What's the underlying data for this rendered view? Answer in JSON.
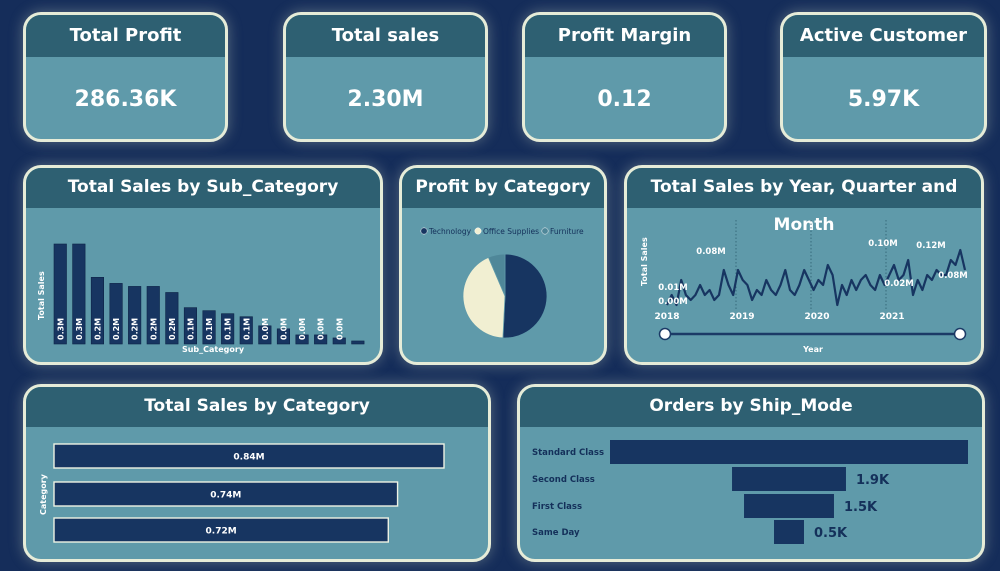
{
  "kpis": [
    {
      "title": "Total Profit",
      "value": "286.36K"
    },
    {
      "title": "Total sales",
      "value": "2.30M"
    },
    {
      "title": "Profit Margin",
      "value": "0.12"
    },
    {
      "title": "Active Customer",
      "value": "5.97K"
    }
  ],
  "panels": {
    "sub_category": {
      "title": "Total Sales by Sub_Category"
    },
    "profit_category": {
      "title": "Profit by Category"
    },
    "year_quarter": {
      "title": "Total Sales by Year, Quarter and Month"
    },
    "sales_category": {
      "title": "Total Sales by Category"
    },
    "ship_mode": {
      "title": "Orders by Ship_Mode"
    }
  },
  "colors": {
    "bar": "#173561",
    "card": "#5f9aaa",
    "header": "#2e6072",
    "border": "#e6ecd8",
    "pie_office": "#f1efd2",
    "pie_furniture": "#4f8799"
  },
  "chart_data": [
    {
      "id": "sub_category",
      "type": "bar",
      "title": "Total Sales by Sub_Category",
      "xlabel": "Sub_Category",
      "ylabel": "Total Sales",
      "values": [
        0.33,
        0.33,
        0.22,
        0.2,
        0.19,
        0.19,
        0.17,
        0.12,
        0.11,
        0.1,
        0.09,
        0.06,
        0.05,
        0.03,
        0.03,
        0.02,
        0.01
      ],
      "data_labels": [
        "0.3M",
        "0.3M",
        "0.2M",
        "0.2M",
        "0.2M",
        "0.2M",
        "0.2M",
        "0.1M",
        "0.1M",
        "0.1M",
        "0.1M",
        "0.0M",
        "0.0M",
        "0.0M",
        "0.0M",
        "0.0M",
        ""
      ]
    },
    {
      "id": "profit_category",
      "type": "pie",
      "title": "Profit by Category",
      "legend": [
        "Technology",
        "Office Supplies",
        "Furniture"
      ],
      "values": [
        145.45,
        122.49,
        18.45
      ]
    },
    {
      "id": "year_quarter",
      "type": "line",
      "title": "Total Sales by Year, Quarter and Month",
      "xlabel": "Year",
      "ylabel": "Total Sales",
      "x_ticks": [
        "2018",
        "2019",
        "2020",
        "2021"
      ],
      "values": [
        0.01,
        0.03,
        0.01,
        0.06,
        0.03,
        0.02,
        0.03,
        0.05,
        0.03,
        0.04,
        0.02,
        0.03,
        0.08,
        0.05,
        0.03,
        0.08,
        0.06,
        0.05,
        0.02,
        0.04,
        0.03,
        0.06,
        0.04,
        0.03,
        0.05,
        0.08,
        0.04,
        0.03,
        0.05,
        0.08,
        0.06,
        0.04,
        0.06,
        0.05,
        0.09,
        0.07,
        0.01,
        0.05,
        0.03,
        0.06,
        0.04,
        0.06,
        0.07,
        0.05,
        0.04,
        0.07,
        0.05,
        0.07,
        0.09,
        0.06,
        0.07,
        0.1,
        0.03,
        0.06,
        0.04,
        0.07,
        0.06,
        0.08,
        0.07,
        0.07,
        0.1,
        0.09,
        0.12,
        0.08
      ],
      "annotations": [
        "0.08M",
        "0.01M",
        "0.00M",
        "0.10M",
        "0.12M",
        "0.02M",
        "0.08M"
      ]
    },
    {
      "id": "sales_category",
      "type": "bar",
      "title": "Total Sales by Category",
      "ylabel": "Category",
      "values": [
        0.84,
        0.74,
        0.72
      ],
      "data_labels": [
        "0.84M",
        "0.74M",
        "0.72M"
      ]
    },
    {
      "id": "ship_mode",
      "type": "bar",
      "title": "Orders by Ship_Mode",
      "categories": [
        "Standard Class",
        "Second Class",
        "First Class",
        "Same Day"
      ],
      "values": [
        5.97,
        1.9,
        1.5,
        0.5
      ],
      "data_labels": [
        "",
        "1.9K",
        "1.5K",
        "0.5K"
      ]
    }
  ]
}
